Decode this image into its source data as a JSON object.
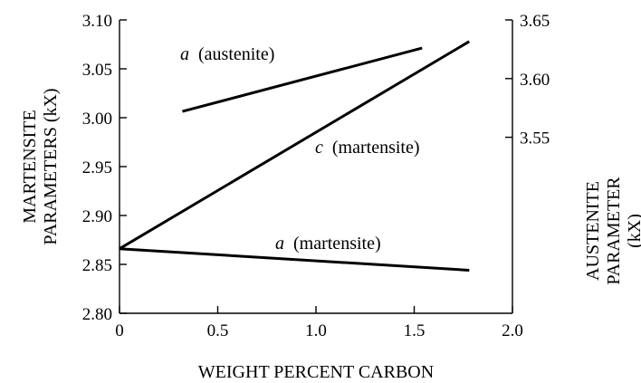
{
  "chart_data": {
    "type": "line",
    "xlabel": "WEIGHT PERCENT CARBON",
    "ylabel": [
      "MARTENSITE",
      "PARAMETERS (kX)"
    ],
    "y2label": [
      "AUSTENITE",
      "PARAMETER",
      "(kX)"
    ],
    "xlim": [
      0,
      2.0
    ],
    "ylim": [
      2.8,
      3.1
    ],
    "y2lim": [
      3.4,
      3.65
    ],
    "xticks": [
      "0",
      "0.5",
      "1.0",
      "1.5",
      "2.0"
    ],
    "yticks": [
      "2.80",
      "2.85",
      "2.90",
      "2.95",
      "3.00",
      "3.05",
      "3.10"
    ],
    "y2ticks": [
      "3.55",
      "3.60",
      "3.65"
    ],
    "grid": false,
    "series": [
      {
        "name": "a (austenite)",
        "symbol": "a",
        "phase": "(austenite)",
        "axis": "right",
        "x": [
          0.32,
          1.54
        ],
        "y": [
          3.572,
          3.626
        ]
      },
      {
        "name": "c (martensite)",
        "symbol": "c",
        "phase": "(martensite)",
        "axis": "left",
        "x": [
          0,
          1.78
        ],
        "y": [
          2.866,
          3.078
        ]
      },
      {
        "name": "a (martensite)",
        "symbol": "a",
        "phase": "(martensite)",
        "axis": "left",
        "x": [
          0,
          1.78
        ],
        "y": [
          2.866,
          2.844
        ]
      }
    ]
  }
}
